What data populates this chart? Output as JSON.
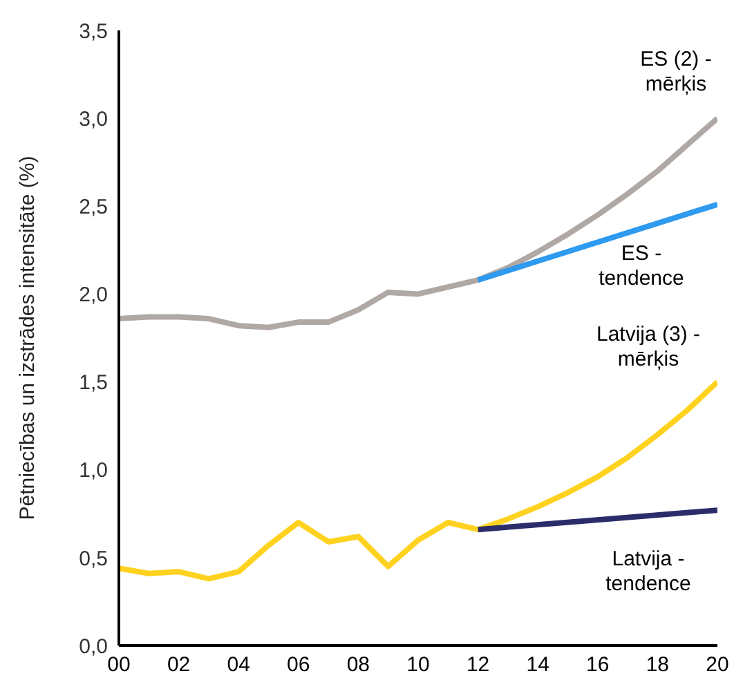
{
  "chart_data": {
    "type": "line",
    "ylabel": "Pētniecības un izstrādes intensitāte (%)",
    "xlim": [
      2000,
      2020
    ],
    "xticks": [
      {
        "value": 2000,
        "label": "00"
      },
      {
        "value": 2002,
        "label": "02"
      },
      {
        "value": 2004,
        "label": "04"
      },
      {
        "value": 2006,
        "label": "06"
      },
      {
        "value": 2008,
        "label": "08"
      },
      {
        "value": 2010,
        "label": "10"
      },
      {
        "value": 2012,
        "label": "12"
      },
      {
        "value": 2014,
        "label": "14"
      },
      {
        "value": 2016,
        "label": "16"
      },
      {
        "value": 2018,
        "label": "18"
      },
      {
        "value": 2020,
        "label": "20"
      }
    ],
    "ylim": [
      0,
      3.5
    ],
    "yticks": [
      {
        "value": 0,
        "label": "0,0"
      },
      {
        "value": 0.5,
        "label": "0,5"
      },
      {
        "value": 1,
        "label": "1,0"
      },
      {
        "value": 1.5,
        "label": "1,5"
      },
      {
        "value": 2,
        "label": "2,0"
      },
      {
        "value": 2.5,
        "label": "2,5"
      },
      {
        "value": 3,
        "label": "3,0"
      },
      {
        "value": 3.5,
        "label": "3,5"
      }
    ],
    "grid": false,
    "legend": false,
    "marker": "none",
    "line_style": "solid",
    "series": [
      {
        "name": "ES (2) - mērķis",
        "color": "#b0a8a4",
        "x": [
          2000,
          2001,
          2002,
          2003,
          2004,
          2005,
          2006,
          2007,
          2008,
          2009,
          2010,
          2011,
          2012,
          2013,
          2014,
          2015,
          2016,
          2017,
          2018,
          2019,
          2020
        ],
        "values": [
          1.86,
          1.87,
          1.87,
          1.86,
          1.82,
          1.81,
          1.84,
          1.84,
          1.91,
          2.01,
          2.0,
          2.04,
          2.08,
          2.15,
          2.24,
          2.34,
          2.45,
          2.57,
          2.7,
          2.85,
          3.0
        ]
      },
      {
        "name": "ES - tendence",
        "color": "#2e9af0",
        "x": [
          2012,
          2020
        ],
        "values": [
          2.08,
          2.51
        ]
      },
      {
        "name": "Latvija (3) - mērķis",
        "color": "#ffd21f",
        "x": [
          2000,
          2001,
          2002,
          2003,
          2004,
          2005,
          2006,
          2007,
          2008,
          2009,
          2010,
          2011,
          2012,
          2013,
          2014,
          2015,
          2016,
          2017,
          2018,
          2019,
          2020
        ],
        "values": [
          0.44,
          0.41,
          0.42,
          0.38,
          0.42,
          0.57,
          0.7,
          0.59,
          0.62,
          0.45,
          0.6,
          0.7,
          0.66,
          0.72,
          0.79,
          0.87,
          0.96,
          1.07,
          1.2,
          1.34,
          1.5
        ]
      },
      {
        "name": "Latvija - tendence",
        "color": "#2b2d6b",
        "x": [
          2012,
          2020
        ],
        "values": [
          0.66,
          0.77
        ]
      }
    ]
  }
}
